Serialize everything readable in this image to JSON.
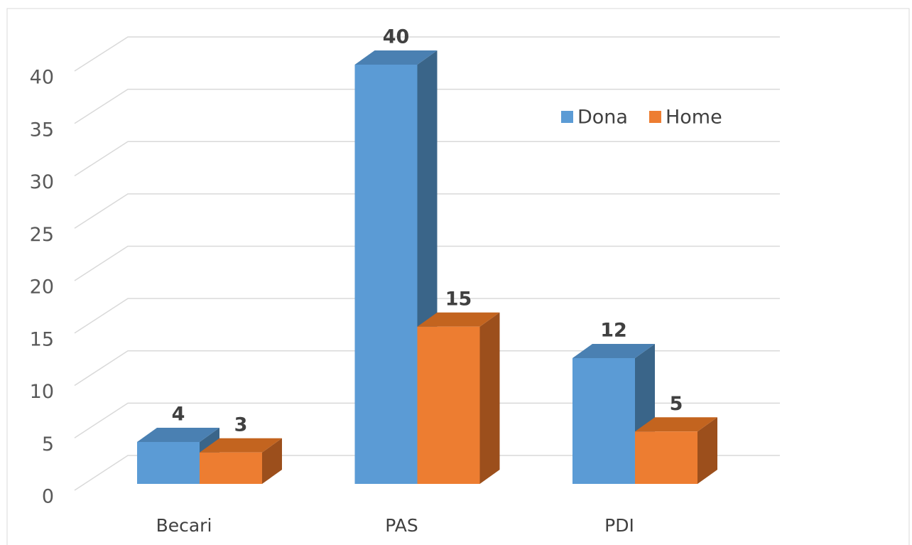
{
  "chart_data": {
    "type": "bar3d",
    "categories": [
      "Becari",
      "PAS",
      "PDI"
    ],
    "series": [
      {
        "name": "Dona",
        "color": "#5b9bd5",
        "side": "#3a6589",
        "top": "#4a80b2",
        "values": [
          4,
          40,
          12
        ]
      },
      {
        "name": "Home",
        "color": "#ed7d31",
        "side": "#9c4f1c",
        "top": "#c3641f",
        "values": [
          3,
          15,
          5
        ]
      }
    ],
    "ylim": [
      0,
      40
    ],
    "yticks": [
      0,
      5,
      10,
      15,
      20,
      25,
      30,
      35,
      40
    ],
    "grid": true,
    "legend": "upper right"
  }
}
